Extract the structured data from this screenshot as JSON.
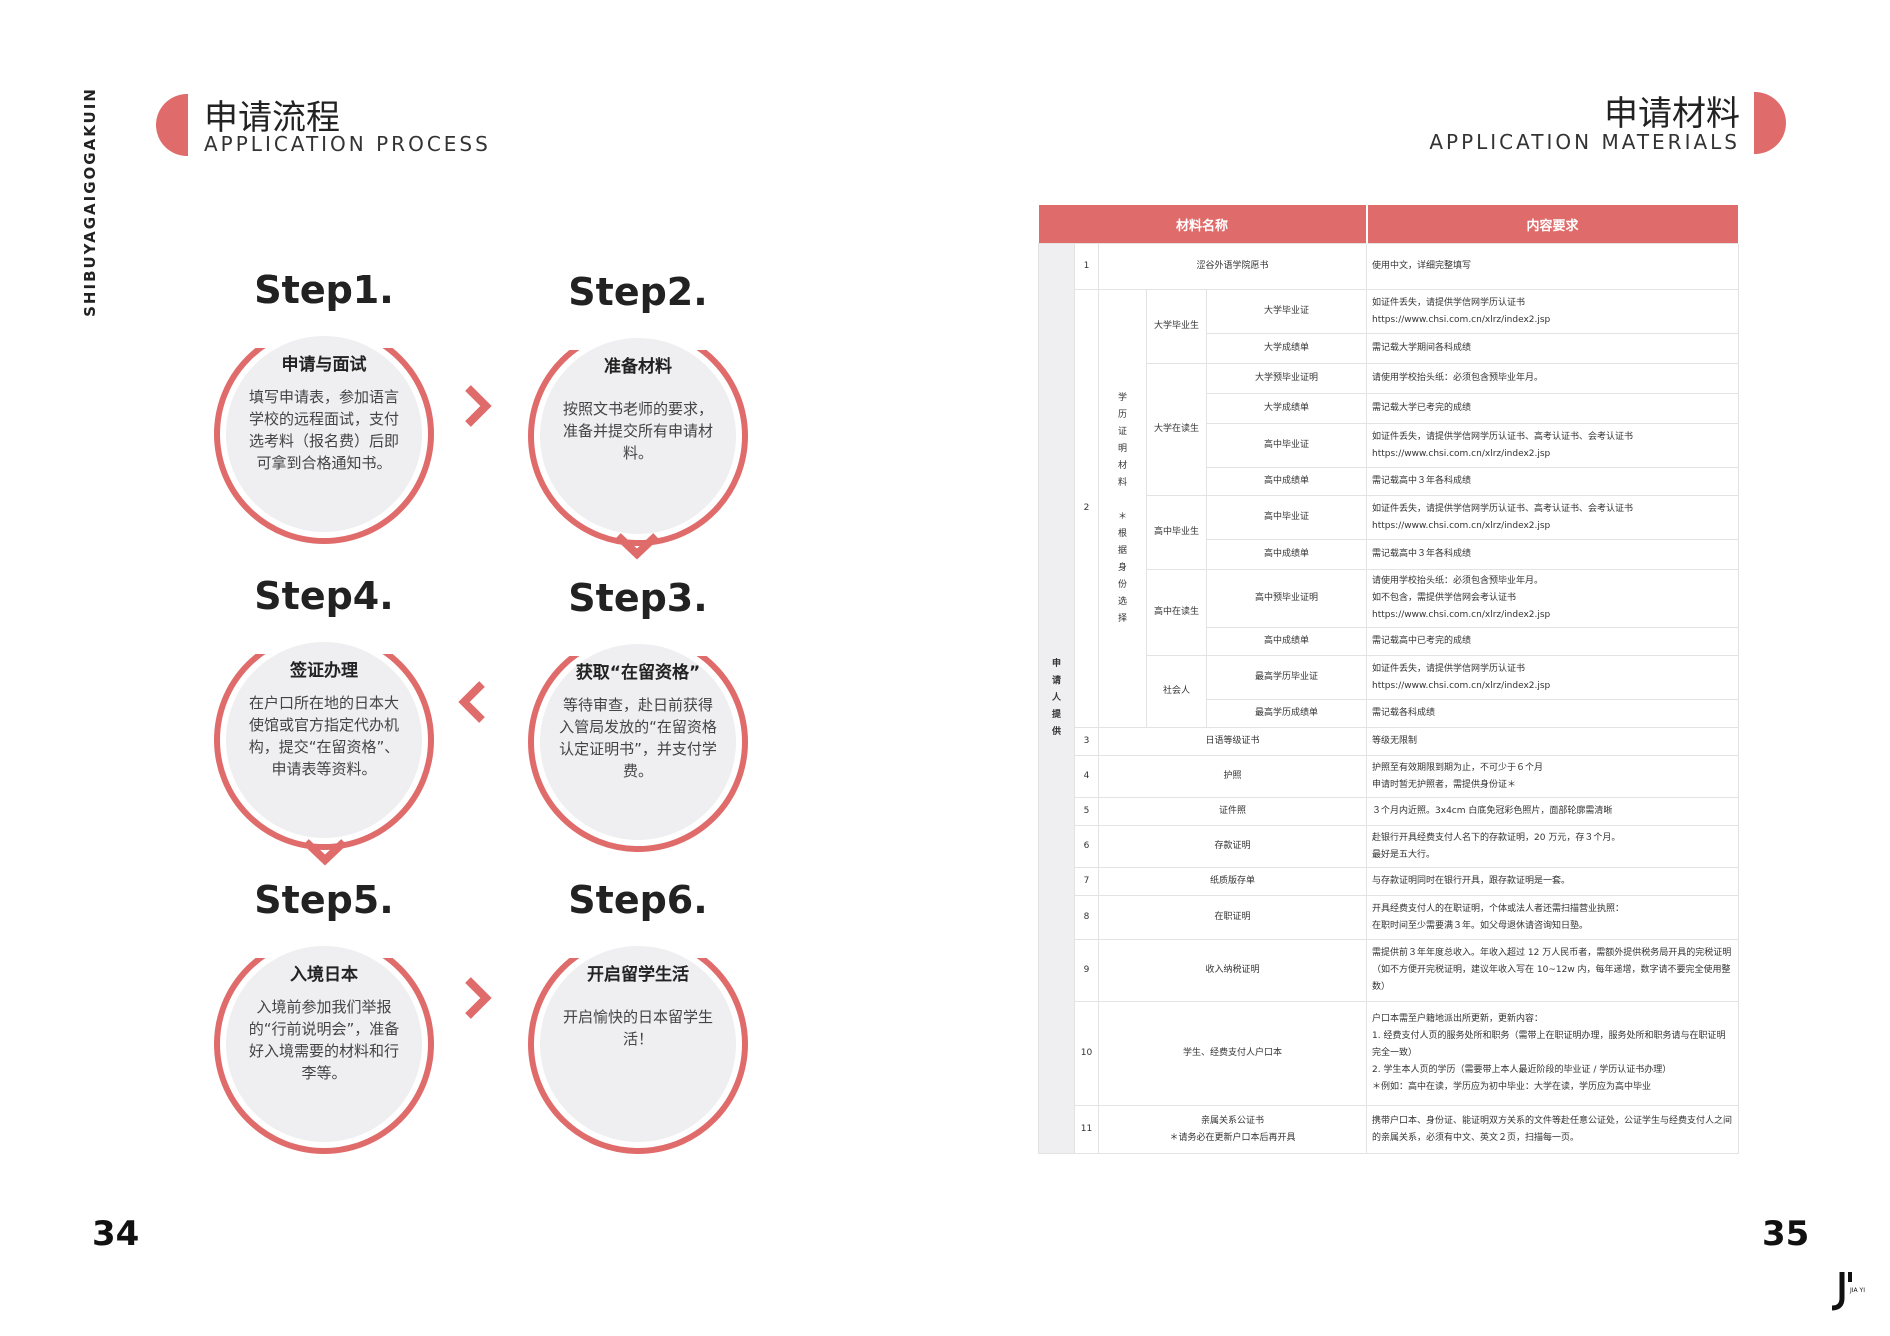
{
  "left_page": {
    "vertical_title": "SHIBUYAGAIGOGAKUIN",
    "header": {
      "cn": "申请流程",
      "en": "APPLICATION PROCESS"
    },
    "page_number": "34",
    "steps": [
      {
        "title": "Step1.",
        "subtitle": "申请与面试",
        "desc": "填写申请表，参加语言学校的远程面试，支付选考料（报名费）后即可拿到合格通知书。"
      },
      {
        "title": "Step2.",
        "subtitle": "准备材料",
        "desc": "按照文书老师的要求，准备并提交所有申请材料。"
      },
      {
        "title": "Step3.",
        "subtitle": "获取“在留资格”",
        "desc": "等待审查，赴日前获得入管局发放的“在留资格认定证明书”，并支付学费。"
      },
      {
        "title": "Step4.",
        "subtitle": "签证办理",
        "desc": "在户口所在地的日本大使馆或官方指定代办机构，提交“在留资格”、申请表等资料。"
      },
      {
        "title": "Step5.",
        "subtitle": "入境日本",
        "desc": "入境前参加我们举报的“行前说明会”，准备好入境需要的材料和行李等。"
      },
      {
        "title": "Step6.",
        "subtitle": "开启留学生活",
        "desc": "开启愉快的日本留学生活！"
      }
    ]
  },
  "right_page": {
    "header": {
      "cn": "申请材料",
      "en": "APPLICATION MATERIALS"
    },
    "page_number": "35",
    "logo_text": "J JIAYI",
    "table": {
      "headers": [
        "材料名称",
        "内容要求"
      ],
      "side_label": "申请人提供",
      "edu_label": "学历证明材料",
      "edu_note": "＊根据身份选择",
      "r1": {
        "no": "1",
        "name": "涩谷外语学院愿书",
        "req": "使用中文，详细完整填写"
      },
      "r2_no": "2",
      "g_univ_grad": "大学毕业生",
      "g_univ_cur": "大学在读生",
      "g_hs_grad": "高中毕业生",
      "g_hs_cur": "高中在读生",
      "g_social": "社会人",
      "e1": {
        "name": "大学毕业证",
        "req1": "如证件丢失，请提供学信网学历认证书",
        "req2": "https://www.chsi.com.cn/xlrz/index2.jsp"
      },
      "e2": {
        "name": "大学成绩单",
        "req": "需记载大学期间各科成绩"
      },
      "e3": {
        "name": "大学预毕业证明",
        "req": "请使用学校抬头纸：必须包含预毕业年月。"
      },
      "e4": {
        "name": "大学成绩单",
        "req": "需记载大学已考完的成绩"
      },
      "e5": {
        "name": "高中毕业证",
        "req1": "如证件丢失，请提供学信网学历认证书、高考认证书、会考认证书",
        "req2": "https://www.chsi.com.cn/xlrz/index2.jsp"
      },
      "e6": {
        "name": "高中成绩单",
        "req": "需记载高中３年各科成绩"
      },
      "e7": {
        "name": "高中毕业证",
        "req1": "如证件丢失，请提供学信网学历认证书、高考认证书、会考认证书",
        "req2": "https://www.chsi.com.cn/xlrz/index2.jsp"
      },
      "e8": {
        "name": "高中成绩单",
        "req": "需记载高中３年各科成绩"
      },
      "e9": {
        "name": "高中预毕业证明",
        "req1": "请使用学校抬头纸：必须包含预毕业年月。",
        "req2": "如不包含，需提供学信网会考认证书",
        "req3": "https://www.chsi.com.cn/xlrz/index2.jsp"
      },
      "e10": {
        "name": "高中成绩单",
        "req": "需记载高中已考完的成绩"
      },
      "e11": {
        "name": "最高学历毕业证",
        "req1": "如证件丢失，请提供学信网学历认证书",
        "req2": "https://www.chsi.com.cn/xlrz/index2.jsp"
      },
      "e12": {
        "name": "最高学历成绩单",
        "req": "需记载各科成绩"
      },
      "r3": {
        "no": "3",
        "name": "日语等级证书",
        "req": "等级无限制"
      },
      "r4": {
        "no": "4",
        "name": "护照",
        "req1": "护照至有效期限到期为止，不可少于６个月",
        "req2": "申请时暂无护照者，需提供身份证＊"
      },
      "r5": {
        "no": "5",
        "name": "证件照",
        "req": "３个月内近照。3x4cm 白底免冠彩色照片，面部轮廓需清晰"
      },
      "r6": {
        "no": "6",
        "name": "存款证明",
        "req1": "赴银行开具经费支付人名下的存款证明，20 万元，存３个月。",
        "req2": "最好是五大行。"
      },
      "r7": {
        "no": "7",
        "name": "纸质版存单",
        "req": "与存款证明同时在银行开具，跟存款证明是一套。"
      },
      "r8": {
        "no": "8",
        "name": "在职证明",
        "req1": "开具经费支付人的在职证明，个体或法人者还需扫描营业执照：",
        "req2": "在职时间至少需要满３年。如父母退休请咨询知日塾。"
      },
      "r9": {
        "no": "9",
        "name": "收入纳税证明",
        "req": "需提供前３年年度总收入。年收入超过 12 万人民币者，需额外提供税务局开具的完税证明（如不方便开完税证明，建议年收入写在 10~12w 内，每年递增，数字请不要完全使用整数）"
      },
      "r10": {
        "no": "10",
        "name": "学生、经费支付人户口本",
        "req1": "户口本需至户籍地派出所更新，更新内容：",
        "req2": "1. 经费支付人页的服务处所和职务（需带上在职证明办理，服务处所和职务请与在职证明完全一致）",
        "req3": "2. 学生本人页的学历（需要带上本人最近阶段的毕业证 / 学历认证书办理）",
        "req4": "＊例如：高中在读，学历应为初中毕业：大学在读，学历应为高中毕业"
      },
      "r11": {
        "no": "11",
        "name1": "亲属关系公证书",
        "name2": "＊请务必在更新户口本后再开具",
        "req": "携带户口本、身份证、能证明双方关系的文件等赴任意公证处，公证学生与经费支付人之间的亲属关系，必须有中文、英文２页，扫描每一页。"
      }
    }
  }
}
